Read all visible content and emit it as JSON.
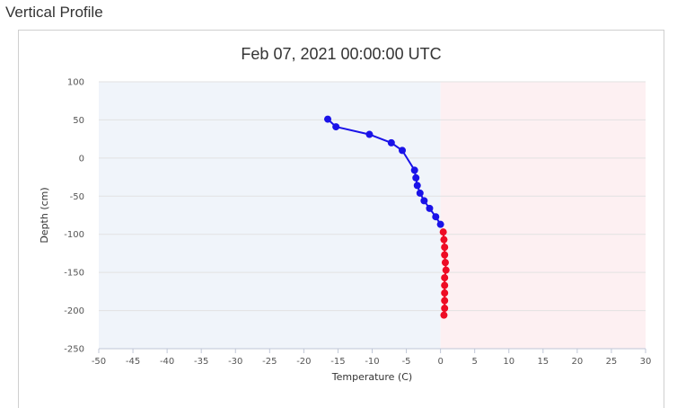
{
  "page": {
    "section_title": "Vertical Profile"
  },
  "chart_data": {
    "type": "line",
    "title": "Feb 07, 2021 00:00:00 UTC",
    "xlabel": "Temperature (C)",
    "ylabel": "Depth (cm)",
    "xlim": [
      -50,
      30
    ],
    "ylim": [
      -250,
      100
    ],
    "xticks": [
      -50,
      -45,
      -40,
      -35,
      -30,
      -25,
      -20,
      -15,
      -10,
      -5,
      0,
      5,
      10,
      15,
      20,
      25,
      30
    ],
    "yticks": [
      100,
      50,
      0,
      -50,
      -100,
      -150,
      -200,
      -250
    ],
    "grid": true,
    "background_bands": [
      {
        "from": -50,
        "to": 0,
        "color": "#f0f4fa"
      },
      {
        "from": 0,
        "to": 30,
        "color": "#fdf0f2"
      }
    ],
    "series": [
      {
        "color": "#1a12e8",
        "points": [
          {
            "x": -16.5,
            "y": 51
          },
          {
            "x": -15.3,
            "y": 41
          },
          {
            "x": -10.4,
            "y": 31
          },
          {
            "x": -7.2,
            "y": 20
          },
          {
            "x": -5.6,
            "y": 10
          },
          {
            "x": -3.8,
            "y": -16
          },
          {
            "x": -3.6,
            "y": -26
          },
          {
            "x": -3.4,
            "y": -36
          },
          {
            "x": -3.0,
            "y": -46
          },
          {
            "x": -2.4,
            "y": -56
          },
          {
            "x": -1.6,
            "y": -66
          },
          {
            "x": -0.7,
            "y": -77
          },
          {
            "x": 0.0,
            "y": -87
          }
        ]
      },
      {
        "color": "#ee0c24",
        "points": [
          {
            "x": 0.4,
            "y": -97
          },
          {
            "x": 0.5,
            "y": -107
          },
          {
            "x": 0.6,
            "y": -117
          },
          {
            "x": 0.6,
            "y": -127
          },
          {
            "x": 0.7,
            "y": -137
          },
          {
            "x": 0.8,
            "y": -147
          },
          {
            "x": 0.6,
            "y": -157
          },
          {
            "x": 0.6,
            "y": -167
          },
          {
            "x": 0.6,
            "y": -177
          },
          {
            "x": 0.6,
            "y": -187
          },
          {
            "x": 0.6,
            "y": -197
          },
          {
            "x": 0.5,
            "y": -206
          }
        ]
      }
    ]
  }
}
